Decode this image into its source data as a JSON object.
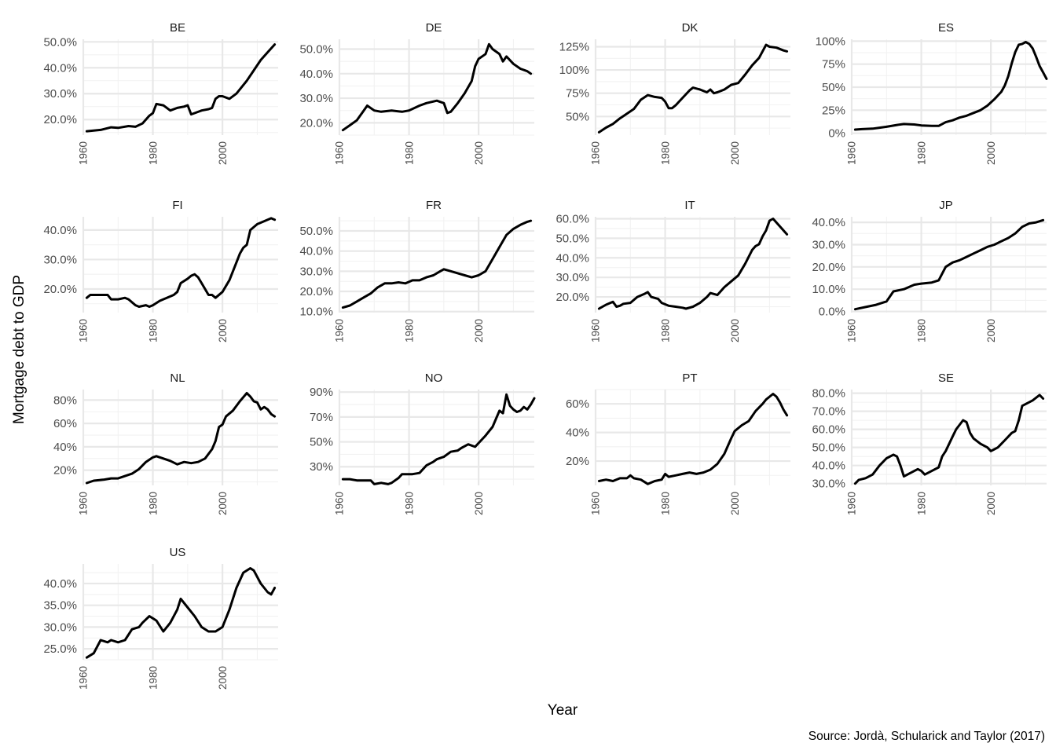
{
  "chart_data": {
    "type": "line",
    "layout": "facet_wrap",
    "xlabel": "Year",
    "ylabel": "Mortgage debt to GDP",
    "caption": "Source: Jordà, Schularick and Taylor (2017)",
    "x_ticks": [
      1960,
      1980,
      2000
    ],
    "x_range": [
      1960,
      2016
    ],
    "line_color": "#000000",
    "panels": [
      {
        "name": "BE",
        "ylim": [
          0.14,
          0.51
        ],
        "y_ticks": [
          0.2,
          0.3,
          0.4,
          0.5
        ],
        "y_tick_labels": [
          "20.0%",
          "30.0%",
          "40.0%",
          "50.0%"
        ],
        "x": [
          1961,
          1965,
          1968,
          1970,
          1973,
          1975,
          1977,
          1979,
          1980,
          1981,
          1983,
          1985,
          1987,
          1989,
          1990,
          1991,
          1992,
          1994,
          1996,
          1997,
          1998,
          1999,
          2000,
          2002,
          2004,
          2007,
          2009,
          2011,
          2013,
          2015
        ],
        "y": [
          0.155,
          0.16,
          0.17,
          0.168,
          0.175,
          0.172,
          0.185,
          0.215,
          0.225,
          0.26,
          0.255,
          0.235,
          0.245,
          0.25,
          0.255,
          0.22,
          0.225,
          0.235,
          0.24,
          0.245,
          0.28,
          0.29,
          0.29,
          0.28,
          0.3,
          0.35,
          0.39,
          0.43,
          0.46,
          0.49
        ]
      },
      {
        "name": "DE",
        "ylim": [
          0.15,
          0.54
        ],
        "y_ticks": [
          0.2,
          0.3,
          0.4,
          0.5
        ],
        "y_tick_labels": [
          "20.0%",
          "30.0%",
          "40.0%",
          "50.0%"
        ],
        "x": [
          1961,
          1963,
          1965,
          1967,
          1968,
          1970,
          1972,
          1975,
          1978,
          1980,
          1983,
          1985,
          1988,
          1990,
          1991,
          1992,
          1994,
          1996,
          1998,
          1999,
          2000,
          2002,
          2003,
          2004,
          2006,
          2007,
          2008,
          2010,
          2012,
          2014,
          2015
        ],
        "y": [
          0.17,
          0.19,
          0.21,
          0.25,
          0.27,
          0.25,
          0.245,
          0.25,
          0.245,
          0.25,
          0.27,
          0.28,
          0.29,
          0.28,
          0.24,
          0.245,
          0.28,
          0.32,
          0.37,
          0.43,
          0.46,
          0.48,
          0.52,
          0.5,
          0.48,
          0.45,
          0.47,
          0.44,
          0.42,
          0.41,
          0.4
        ]
      },
      {
        "name": "DK",
        "ylim": [
          0.3,
          1.33
        ],
        "y_ticks": [
          0.5,
          0.75,
          1.0,
          1.25
        ],
        "y_tick_labels": [
          "50%",
          "75%",
          "100%",
          "125%"
        ],
        "x": [
          1961,
          1963,
          1965,
          1967,
          1969,
          1971,
          1973,
          1975,
          1977,
          1979,
          1980,
          1981,
          1982,
          1983,
          1985,
          1987,
          1988,
          1990,
          1992,
          1993,
          1994,
          1995,
          1997,
          1999,
          2001,
          2003,
          2005,
          2007,
          2009,
          2010,
          2012,
          2014,
          2015
        ],
        "y": [
          0.33,
          0.38,
          0.42,
          0.48,
          0.53,
          0.58,
          0.68,
          0.73,
          0.71,
          0.7,
          0.66,
          0.59,
          0.59,
          0.62,
          0.7,
          0.78,
          0.81,
          0.79,
          0.76,
          0.79,
          0.75,
          0.76,
          0.79,
          0.84,
          0.86,
          0.95,
          1.05,
          1.13,
          1.27,
          1.25,
          1.24,
          1.21,
          1.2
        ]
      },
      {
        "name": "ES",
        "ylim": [
          -0.02,
          1.02
        ],
        "y_ticks": [
          0,
          0.25,
          0.5,
          0.75,
          1.0
        ],
        "y_tick_labels": [
          "0%",
          "25%",
          "50%",
          "75%",
          "100%"
        ],
        "x": [
          1961,
          1963,
          1966,
          1968,
          1970,
          1973,
          1975,
          1978,
          1980,
          1983,
          1985,
          1987,
          1989,
          1991,
          1993,
          1995,
          1997,
          1999,
          2001,
          2003,
          2004,
          2005,
          2006,
          2007,
          2008,
          2009,
          2010,
          2011,
          2012,
          2013,
          2014,
          2015,
          2016
        ],
        "y": [
          0.04,
          0.045,
          0.05,
          0.06,
          0.07,
          0.09,
          0.1,
          0.095,
          0.085,
          0.08,
          0.08,
          0.12,
          0.14,
          0.17,
          0.19,
          0.22,
          0.25,
          0.3,
          0.37,
          0.45,
          0.52,
          0.62,
          0.76,
          0.88,
          0.96,
          0.97,
          0.99,
          0.97,
          0.92,
          0.83,
          0.73,
          0.66,
          0.59
        ]
      },
      {
        "name": "FI",
        "ylim": [
          0.12,
          0.445
        ],
        "y_ticks": [
          0.2,
          0.3,
          0.4
        ],
        "y_tick_labels": [
          "20.0%",
          "30.0%",
          "40.0%"
        ],
        "x": [
          1961,
          1962,
          1964,
          1966,
          1967,
          1968,
          1969,
          1970,
          1972,
          1973,
          1975,
          1976,
          1978,
          1979,
          1980,
          1982,
          1984,
          1986,
          1987,
          1988,
          1990,
          1991,
          1992,
          1993,
          1994,
          1995,
          1996,
          1997,
          1998,
          2000,
          2002,
          2004,
          2005,
          2006,
          2007,
          2008,
          2010,
          2012,
          2014,
          2015
        ],
        "y": [
          0.17,
          0.18,
          0.18,
          0.18,
          0.18,
          0.165,
          0.165,
          0.165,
          0.17,
          0.165,
          0.145,
          0.14,
          0.145,
          0.14,
          0.145,
          0.16,
          0.17,
          0.18,
          0.19,
          0.22,
          0.235,
          0.245,
          0.25,
          0.24,
          0.22,
          0.2,
          0.18,
          0.18,
          0.17,
          0.19,
          0.23,
          0.29,
          0.32,
          0.34,
          0.35,
          0.4,
          0.42,
          0.43,
          0.44,
          0.435
        ]
      },
      {
        "name": "FR",
        "ylim": [
          0.095,
          0.57
        ],
        "y_ticks": [
          0.1,
          0.2,
          0.3,
          0.4,
          0.5
        ],
        "y_tick_labels": [
          "10.0%",
          "20.0%",
          "30.0%",
          "40.0%",
          "50.0%"
        ],
        "x": [
          1961,
          1963,
          1965,
          1967,
          1969,
          1971,
          1973,
          1975,
          1977,
          1979,
          1981,
          1983,
          1985,
          1987,
          1989,
          1990,
          1992,
          1994,
          1996,
          1998,
          2000,
          2002,
          2004,
          2006,
          2008,
          2010,
          2012,
          2014,
          2015
        ],
        "y": [
          0.12,
          0.13,
          0.15,
          0.17,
          0.19,
          0.22,
          0.24,
          0.24,
          0.245,
          0.24,
          0.255,
          0.255,
          0.27,
          0.28,
          0.3,
          0.31,
          0.3,
          0.29,
          0.28,
          0.27,
          0.28,
          0.3,
          0.36,
          0.42,
          0.48,
          0.51,
          0.53,
          0.545,
          0.55
        ]
      },
      {
        "name": "IT",
        "ylim": [
          0.12,
          0.61
        ],
        "y_ticks": [
          0.2,
          0.3,
          0.4,
          0.5,
          0.6
        ],
        "y_tick_labels": [
          "20.0%",
          "30.0%",
          "40.0%",
          "50.0%",
          "60.0%"
        ],
        "x": [
          1961,
          1963,
          1965,
          1966,
          1967,
          1968,
          1970,
          1972,
          1974,
          1975,
          1976,
          1978,
          1979,
          1981,
          1983,
          1985,
          1986,
          1988,
          1990,
          1992,
          1993,
          1995,
          1997,
          1999,
          2001,
          2003,
          2005,
          2006,
          2007,
          2008,
          2009,
          2010,
          2011,
          2013,
          2015
        ],
        "y": [
          0.14,
          0.16,
          0.175,
          0.15,
          0.155,
          0.165,
          0.17,
          0.2,
          0.215,
          0.225,
          0.2,
          0.19,
          0.17,
          0.155,
          0.15,
          0.145,
          0.14,
          0.15,
          0.17,
          0.2,
          0.22,
          0.21,
          0.25,
          0.28,
          0.31,
          0.37,
          0.44,
          0.46,
          0.47,
          0.51,
          0.54,
          0.59,
          0.6,
          0.56,
          0.52
        ]
      },
      {
        "name": "JP",
        "ylim": [
          -0.005,
          0.425
        ],
        "y_ticks": [
          0,
          0.1,
          0.2,
          0.3,
          0.4
        ],
        "y_tick_labels": [
          "0.0%",
          "10.0%",
          "20.0%",
          "30.0%",
          "40.0%"
        ],
        "x": [
          1961,
          1964,
          1967,
          1970,
          1972,
          1975,
          1978,
          1980,
          1983,
          1985,
          1987,
          1989,
          1991,
          1993,
          1995,
          1997,
          1999,
          2001,
          2003,
          2005,
          2007,
          2009,
          2011,
          2013,
          2015
        ],
        "y": [
          0.01,
          0.02,
          0.03,
          0.045,
          0.09,
          0.1,
          0.12,
          0.125,
          0.13,
          0.14,
          0.2,
          0.22,
          0.23,
          0.245,
          0.26,
          0.275,
          0.29,
          0.3,
          0.315,
          0.33,
          0.35,
          0.38,
          0.395,
          0.4,
          0.41
        ]
      },
      {
        "name": "NL",
        "ylim": [
          0.07,
          0.89
        ],
        "y_ticks": [
          0.2,
          0.4,
          0.6,
          0.8
        ],
        "y_tick_labels": [
          "20%",
          "40%",
          "60%",
          "80%"
        ],
        "x": [
          1961,
          1963,
          1966,
          1968,
          1970,
          1972,
          1974,
          1976,
          1978,
          1980,
          1981,
          1983,
          1984,
          1985,
          1987,
          1988,
          1989,
          1991,
          1993,
          1995,
          1997,
          1998,
          1999,
          2000,
          2001,
          2003,
          2005,
          2007,
          2008,
          2009,
          2010,
          2011,
          2012,
          2013,
          2014,
          2015
        ],
        "y": [
          0.09,
          0.11,
          0.12,
          0.13,
          0.13,
          0.15,
          0.17,
          0.21,
          0.27,
          0.31,
          0.32,
          0.3,
          0.29,
          0.28,
          0.25,
          0.26,
          0.27,
          0.26,
          0.27,
          0.3,
          0.38,
          0.45,
          0.57,
          0.59,
          0.66,
          0.71,
          0.79,
          0.86,
          0.83,
          0.79,
          0.78,
          0.72,
          0.74,
          0.72,
          0.68,
          0.66
        ]
      },
      {
        "name": "NO",
        "ylim": [
          0.15,
          0.92
        ],
        "y_ticks": [
          0.3,
          0.5,
          0.7,
          0.9
        ],
        "y_tick_labels": [
          "30%",
          "50%",
          "70%",
          "90%"
        ],
        "x": [
          1961,
          1963,
          1965,
          1967,
          1969,
          1970,
          1972,
          1974,
          1975,
          1977,
          1978,
          1979,
          1981,
          1983,
          1985,
          1987,
          1988,
          1990,
          1992,
          1994,
          1995,
          1997,
          1999,
          2000,
          2002,
          2004,
          2006,
          2007,
          2008,
          2009,
          2010,
          2011,
          2012,
          2013,
          2014,
          2015,
          2016
        ],
        "y": [
          0.2,
          0.2,
          0.19,
          0.19,
          0.19,
          0.16,
          0.17,
          0.16,
          0.17,
          0.21,
          0.24,
          0.24,
          0.24,
          0.25,
          0.31,
          0.34,
          0.36,
          0.38,
          0.42,
          0.43,
          0.45,
          0.48,
          0.46,
          0.49,
          0.55,
          0.62,
          0.75,
          0.73,
          0.88,
          0.79,
          0.76,
          0.74,
          0.75,
          0.78,
          0.76,
          0.8,
          0.85
        ]
      },
      {
        "name": "PT",
        "ylim": [
          0.03,
          0.7
        ],
        "y_ticks": [
          0.2,
          0.4,
          0.6
        ],
        "y_tick_labels": [
          "20%",
          "40%",
          "60%"
        ],
        "x": [
          1961,
          1963,
          1965,
          1967,
          1969,
          1970,
          1971,
          1973,
          1975,
          1977,
          1979,
          1980,
          1981,
          1983,
          1985,
          1987,
          1989,
          1991,
          1993,
          1995,
          1997,
          1999,
          2000,
          2002,
          2004,
          2006,
          2008,
          2009,
          2010,
          2011,
          2012,
          2013,
          2014,
          2015
        ],
        "y": [
          0.06,
          0.07,
          0.06,
          0.08,
          0.08,
          0.1,
          0.08,
          0.07,
          0.04,
          0.06,
          0.07,
          0.11,
          0.09,
          0.1,
          0.11,
          0.12,
          0.11,
          0.12,
          0.14,
          0.18,
          0.25,
          0.36,
          0.41,
          0.45,
          0.48,
          0.55,
          0.6,
          0.63,
          0.65,
          0.67,
          0.65,
          0.61,
          0.56,
          0.52
        ]
      },
      {
        "name": "SE",
        "ylim": [
          0.29,
          0.82
        ],
        "y_ticks": [
          0.3,
          0.4,
          0.5,
          0.6,
          0.7,
          0.8
        ],
        "y_tick_labels": [
          "30.0%",
          "40.0%",
          "50.0%",
          "60.0%",
          "70.0%",
          "80.0%"
        ],
        "x": [
          1961,
          1962,
          1964,
          1966,
          1968,
          1970,
          1972,
          1973,
          1974,
          1975,
          1976,
          1978,
          1979,
          1980,
          1981,
          1983,
          1985,
          1986,
          1987,
          1989,
          1990,
          1992,
          1993,
          1994,
          1995,
          1997,
          1999,
          2000,
          2001,
          2002,
          2004,
          2006,
          2007,
          2008,
          2009,
          2010,
          2012,
          2014,
          2015
        ],
        "y": [
          0.3,
          0.32,
          0.33,
          0.35,
          0.4,
          0.44,
          0.46,
          0.45,
          0.4,
          0.34,
          0.35,
          0.37,
          0.38,
          0.37,
          0.35,
          0.37,
          0.39,
          0.45,
          0.48,
          0.56,
          0.6,
          0.65,
          0.64,
          0.58,
          0.55,
          0.52,
          0.5,
          0.48,
          0.49,
          0.5,
          0.54,
          0.58,
          0.59,
          0.65,
          0.73,
          0.74,
          0.76,
          0.79,
          0.77
        ]
      },
      {
        "name": "US",
        "ylim": [
          0.225,
          0.445
        ],
        "y_ticks": [
          0.25,
          0.3,
          0.35,
          0.4
        ],
        "y_tick_labels": [
          "25.0%",
          "30.0%",
          "35.0%",
          "40.0%"
        ],
        "x": [
          1961,
          1963,
          1965,
          1967,
          1968,
          1970,
          1972,
          1974,
          1976,
          1977,
          1979,
          1980,
          1981,
          1983,
          1985,
          1987,
          1988,
          1990,
          1992,
          1994,
          1996,
          1998,
          2000,
          2002,
          2004,
          2006,
          2008,
          2009,
          2011,
          2013,
          2014,
          2015
        ],
        "y": [
          0.23,
          0.24,
          0.27,
          0.265,
          0.27,
          0.265,
          0.27,
          0.295,
          0.3,
          0.31,
          0.325,
          0.32,
          0.315,
          0.29,
          0.31,
          0.34,
          0.365,
          0.345,
          0.325,
          0.3,
          0.29,
          0.29,
          0.3,
          0.34,
          0.39,
          0.425,
          0.435,
          0.43,
          0.4,
          0.38,
          0.375,
          0.39
        ]
      }
    ]
  }
}
